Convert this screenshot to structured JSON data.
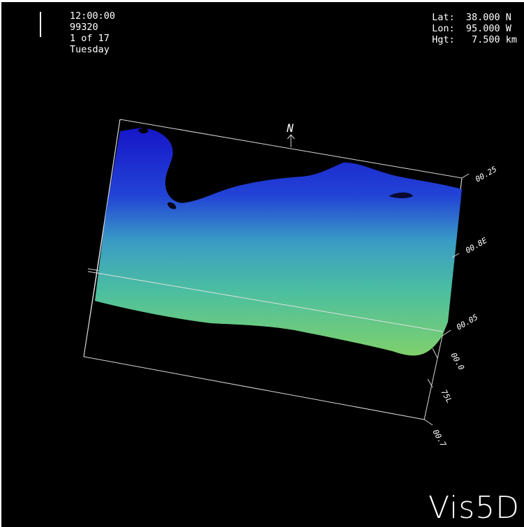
{
  "app": {
    "logo": "Vis5D"
  },
  "status": {
    "time": "12:00:00",
    "date": "99320",
    "timestep": "1 of 17",
    "weekday": "Tuesday"
  },
  "probe": {
    "lat_label": "Lat:",
    "lat_value": "38.000 N",
    "lon_label": "Lon:",
    "lon_value": "95.000 W",
    "hgt_label": "Hgt:",
    "hgt_value": "7.500 km"
  },
  "box": {
    "north_label": "N",
    "axis_labels": [
      "00.25",
      "00.8E",
      "00.05",
      "00.0",
      "75L",
      "00.7"
    ]
  },
  "colors": {
    "surface_top": "#1a1ad8",
    "surface_mid": "#3aa6c0",
    "surface_bottom": "#7fd06a",
    "box_lines": "#d8d8d8"
  }
}
